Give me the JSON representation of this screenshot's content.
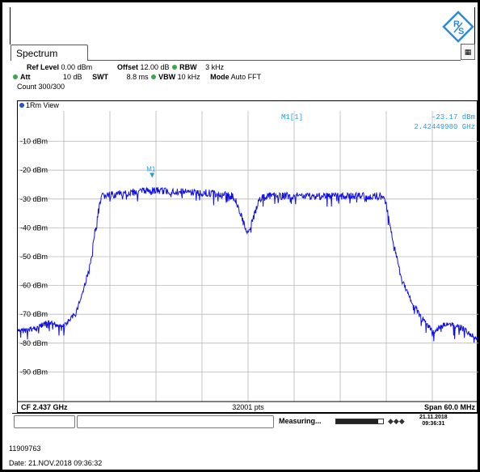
{
  "header": {
    "tab_label": "Spectrum",
    "ref_level_label": "Ref Level",
    "ref_level_value": "0.00 dBm",
    "offset_label": "Offset",
    "offset_value": "12.00 dB",
    "rbw_label": "RBW",
    "rbw_value": "3 kHz",
    "att_label": "Att",
    "att_value": "10 dB",
    "swt_label": "SWT",
    "swt_value": "8.8 ms",
    "vbw_label": "VBW",
    "vbw_value": "10 kHz",
    "mode_label": "Mode",
    "mode_value": "Auto FFT",
    "count_text": "Count 300/300",
    "status_dot_color": "#3aa84a"
  },
  "plot": {
    "view_label": "1Rm View",
    "marker_readout_label": "M1[1]",
    "marker_readout_level": "-23.17 dBm",
    "marker_readout_freq": "2.42449980 GHz",
    "marker_label": "M1",
    "trace_color": "#1010e0",
    "readout_color": "#2c9bd6",
    "bottom_left": "CF 2.437 GHz",
    "bottom_center": "32001 pts",
    "bottom_right": "Span 60.0 MHz"
  },
  "chart_data": {
    "type": "line",
    "title": "",
    "xlabel": "",
    "ylabel": "",
    "y_ticks": [
      "-10 dBm",
      "-20 dBm",
      "-30 dBm",
      "-40 dBm",
      "-50 dBm",
      "-60 dBm",
      "-70 dBm",
      "-80 dBm",
      "-90 dBm"
    ],
    "y_tick_values": [
      -10,
      -20,
      -30,
      -40,
      -50,
      -60,
      -70,
      -80,
      -90
    ],
    "ylim": [
      -100,
      0
    ],
    "xlim_ghz": [
      2.407,
      2.467
    ],
    "grid": true,
    "marker": {
      "name": "M1",
      "x_ghz": 2.4245,
      "y_dbm": -23.17
    },
    "series": [
      {
        "x_ghz": [
          2.407,
          2.409,
          2.411,
          2.413,
          2.4145,
          2.4155,
          2.4165,
          2.417,
          2.4175,
          2.418,
          2.424,
          2.432,
          2.435,
          2.4355,
          2.4365,
          2.437,
          2.4375,
          2.4385,
          2.4395,
          2.448,
          2.4545,
          2.455,
          2.456,
          2.457,
          2.458,
          2.4595,
          2.461,
          2.463,
          2.465,
          2.467
        ],
        "y_dbm": [
          -76,
          -75,
          -73,
          -74,
          -70,
          -62,
          -52,
          -42,
          -34,
          -29,
          -27,
          -28,
          -29,
          -31,
          -39,
          -42,
          -38,
          -30,
          -29,
          -29,
          -29,
          -32,
          -46,
          -58,
          -64,
          -71,
          -76,
          -73,
          -75,
          -79
        ]
      }
    ]
  },
  "status": {
    "measuring": "Measuring...",
    "date": "21.11.2018",
    "time": "09:36:31",
    "progress": 0.9
  },
  "footer": {
    "id": "11909763",
    "date_line": "Date: 21.NOV.2018  09:36:32"
  }
}
